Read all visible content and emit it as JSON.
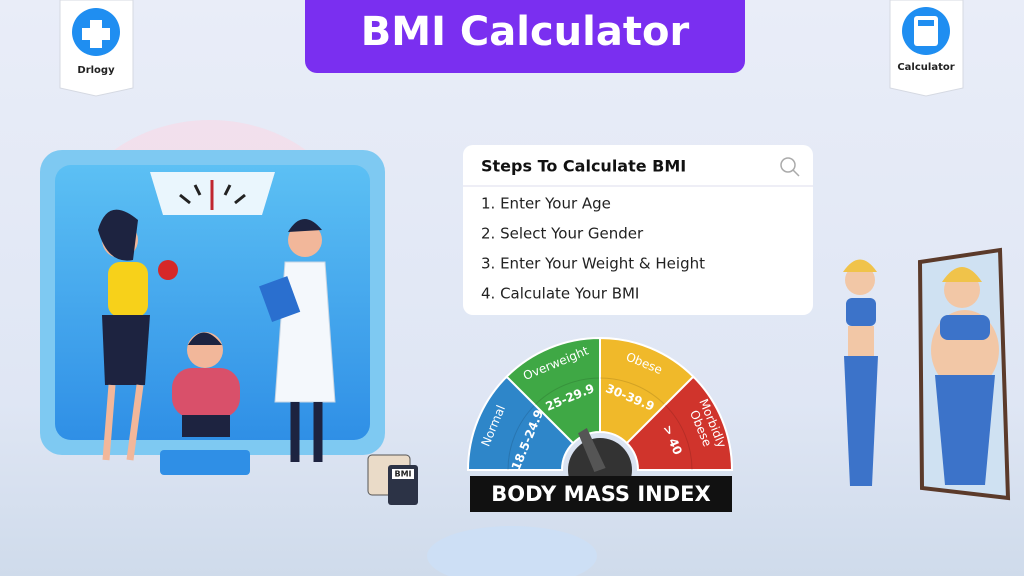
{
  "header": {
    "title": "BMI Calculator"
  },
  "badges": {
    "left": "Drlogy",
    "right": "Calculator"
  },
  "steps": {
    "title": "Steps To Calculate BMI",
    "items": [
      "1. Enter Your Age",
      "2. Select Your Gender",
      "3. Enter Your Weight & Height",
      "4. Calculate Your BMI"
    ]
  },
  "gauge": {
    "segments": [
      {
        "name": [
          "Normal"
        ],
        "range": "18.5-24.9"
      },
      {
        "name": [
          "Overweight"
        ],
        "range": "25-29.9"
      },
      {
        "name": [
          "Obese"
        ],
        "range": "30-39.9"
      },
      {
        "name": [
          "Morbidly",
          "Obese"
        ],
        "range": "> 40"
      }
    ],
    "banner": "BODY MASS INDEX"
  },
  "icon": {
    "label": "BMI"
  }
}
